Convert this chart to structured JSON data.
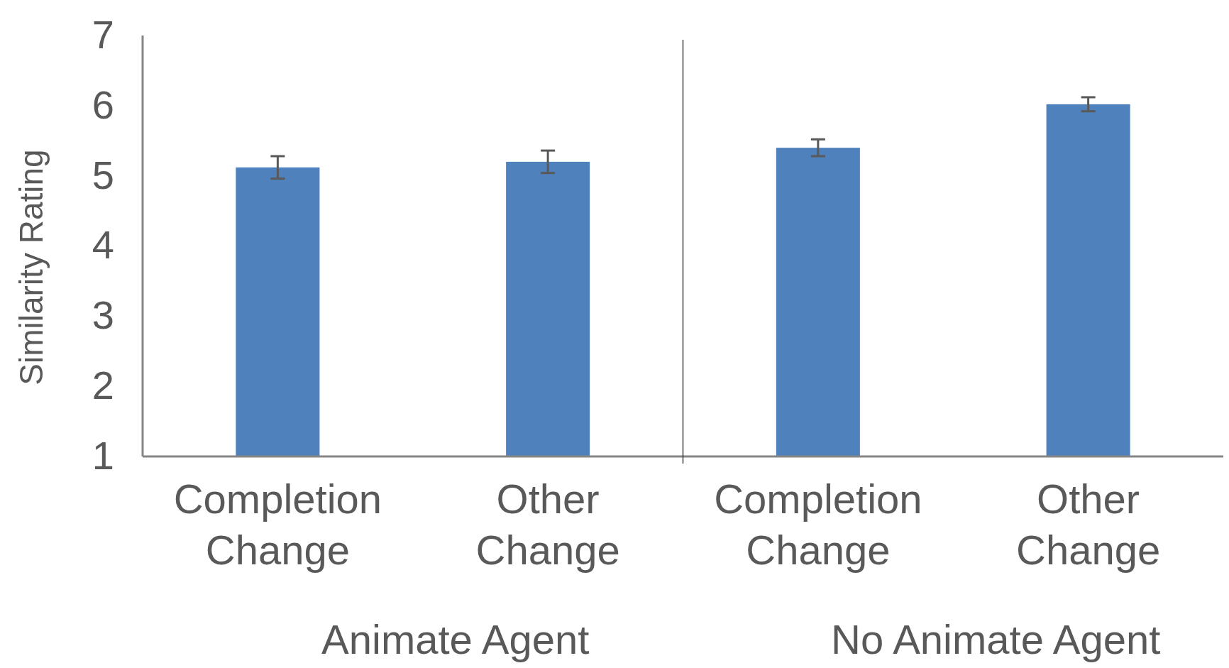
{
  "chart_data": {
    "type": "bar",
    "ylabel": "Similarity Rating",
    "categories": [
      "Completion Change",
      "Other Change",
      "Completion Change",
      "Other Change"
    ],
    "values": [
      5.12,
      5.2,
      5.4,
      6.02
    ],
    "errors": [
      0.16,
      0.16,
      0.12,
      0.1
    ],
    "color": "#4f81bd",
    "ylim": [
      1,
      7
    ],
    "yticks": [
      1,
      2,
      3,
      4,
      5,
      6,
      7
    ],
    "grid": false,
    "annotations": [
      "Animate Agent",
      "No Animate Agent"
    ]
  }
}
